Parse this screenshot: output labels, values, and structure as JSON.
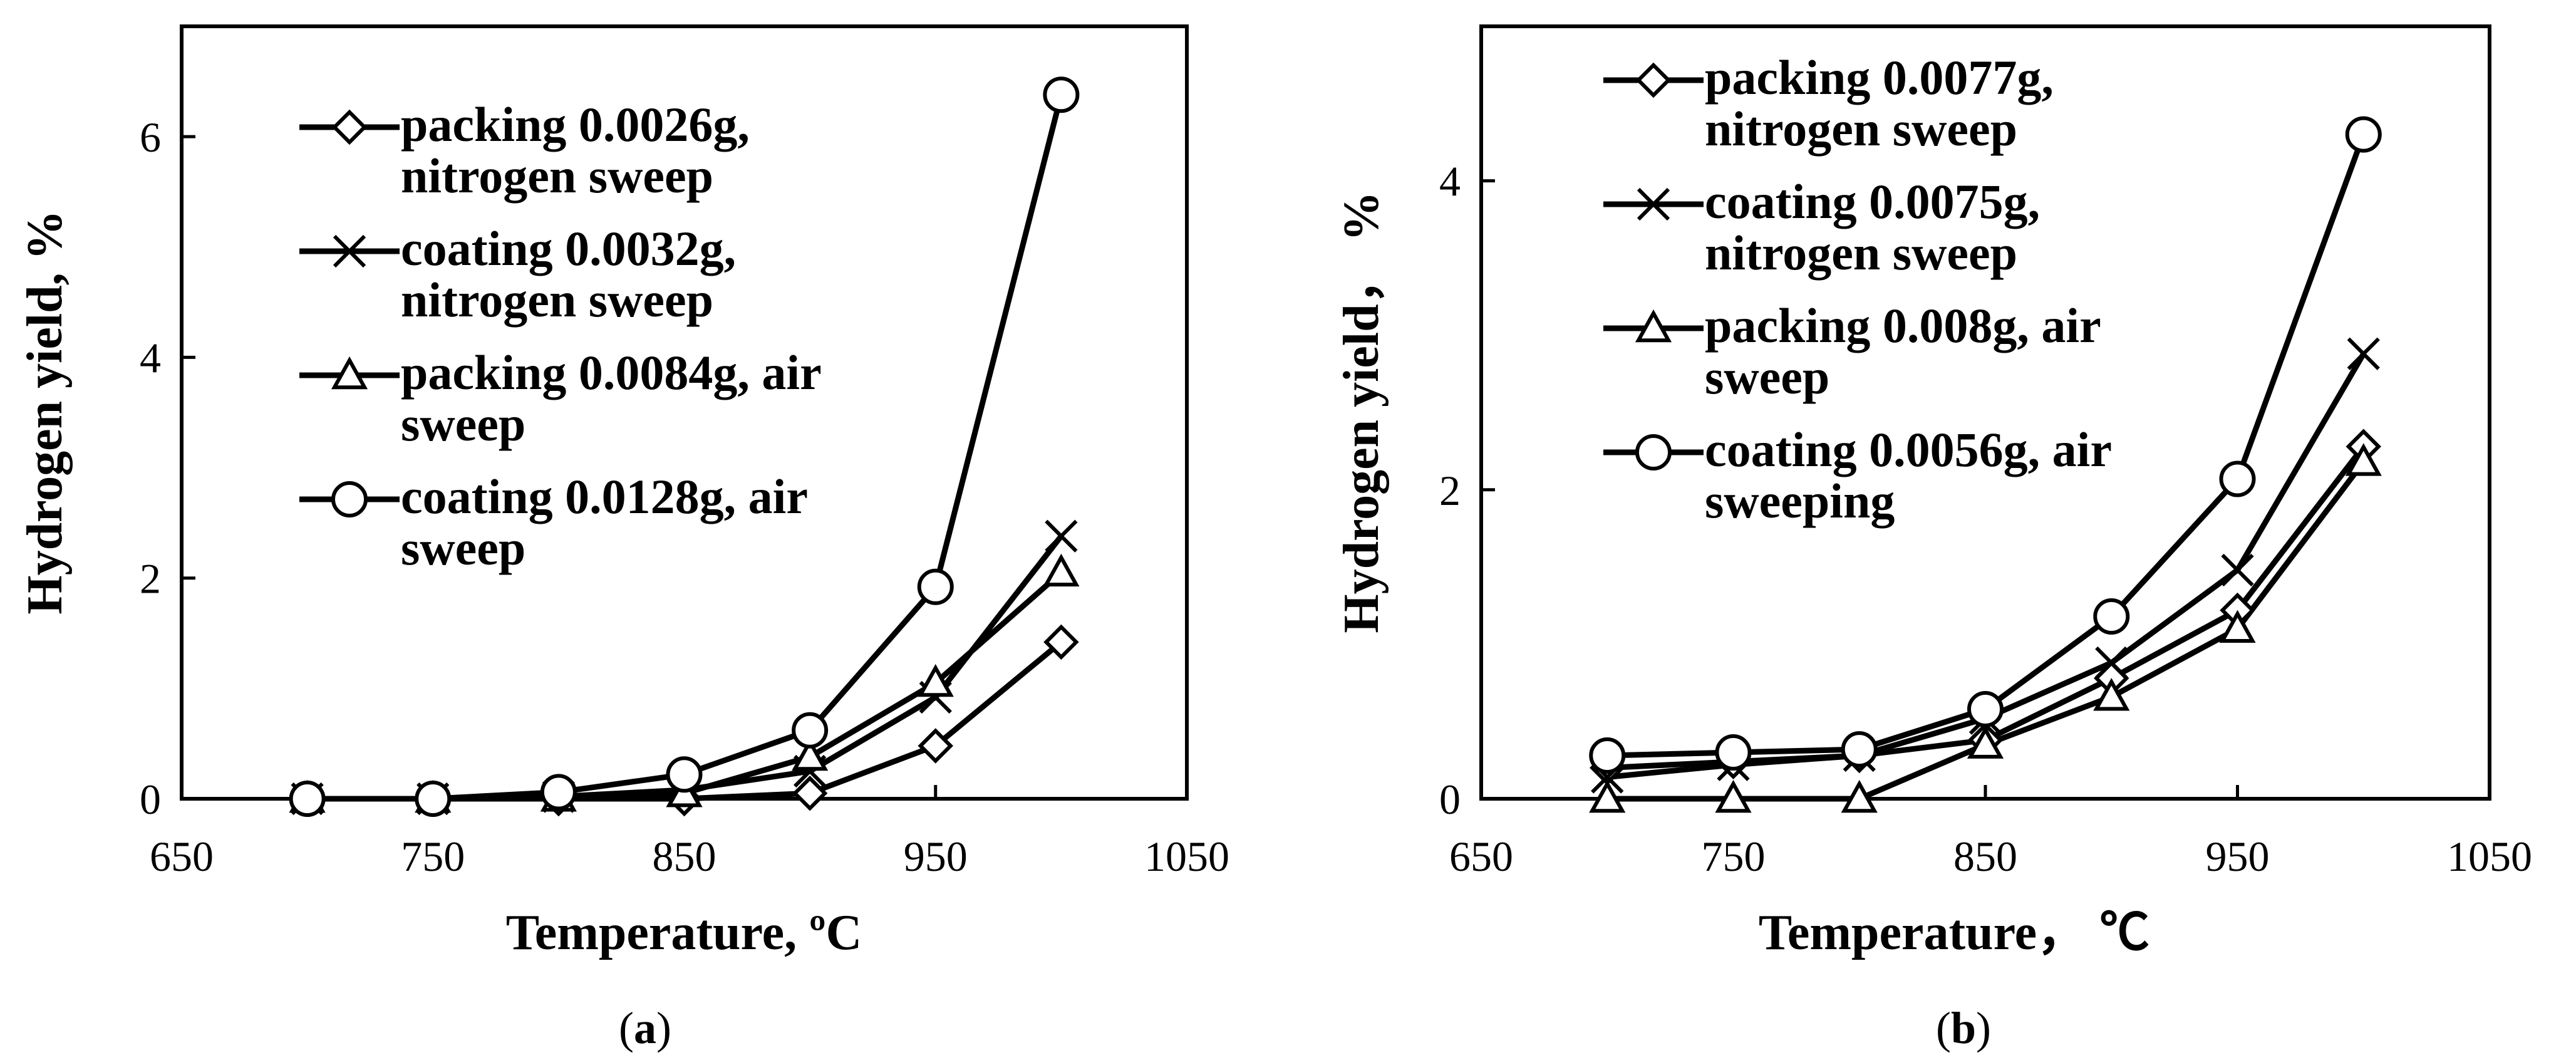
{
  "chart_data": [
    {
      "type": "line",
      "panel": "a",
      "xlabel": "Temperature, ºC",
      "ylabel": "Hydrogen yield, %",
      "xlim": [
        650,
        1050
      ],
      "ylim": [
        0,
        7
      ],
      "xticks": [
        650,
        750,
        850,
        950,
        1050
      ],
      "yticks": [
        0,
        2,
        4,
        6
      ],
      "x": [
        700,
        750,
        800,
        850,
        900,
        950,
        1000
      ],
      "series": [
        {
          "name": "packing 0.0026g, nitrogen sweep",
          "label_lines": [
            "packing 0.0026g,",
            "nitrogen sweep"
          ],
          "marker": "diamond",
          "values": [
            0,
            0,
            0,
            0,
            0.05,
            0.48,
            1.42
          ]
        },
        {
          "name": "coating 0.0032g, nitrogen sweep",
          "label_lines": [
            "coating 0.0032g,",
            "nitrogen sweep"
          ],
          "marker": "x",
          "values": [
            0,
            0,
            0.02,
            0.08,
            0.25,
            0.92,
            2.38
          ]
        },
        {
          "name": "packing 0.0084g, air sweep",
          "label_lines": [
            "packing 0.0084g, air",
            "sweep"
          ],
          "marker": "triangle",
          "values": [
            0,
            0,
            0.01,
            0.05,
            0.38,
            1.05,
            2.05
          ]
        },
        {
          "name": "coating 0.0128g, air sweep",
          "label_lines": [
            "coating 0.0128g, air",
            "sweep"
          ],
          "marker": "circle",
          "values": [
            0,
            0,
            0.06,
            0.22,
            0.62,
            1.92,
            6.38
          ]
        }
      ]
    },
    {
      "type": "line",
      "panel": "b",
      "xlabel": "Temperature， ℃",
      "ylabel": "Hydrogen yield， %",
      "xlim": [
        650,
        1050
      ],
      "ylim": [
        0,
        5
      ],
      "xticks": [
        650,
        750,
        850,
        950,
        1050
      ],
      "yticks": [
        0,
        2,
        4
      ],
      "x": [
        700,
        750,
        800,
        850,
        900,
        950,
        1000
      ],
      "series": [
        {
          "name": "packing 0.0077g, nitrogen sweep",
          "label_lines": [
            "packing 0.0077g,",
            "nitrogen sweep"
          ],
          "marker": "diamond",
          "values": [
            0.2,
            0.24,
            0.28,
            0.38,
            0.78,
            1.22,
            2.28
          ]
        },
        {
          "name": "coating 0.0075g, nitrogen sweep",
          "label_lines": [
            "coating 0.0075g,",
            "nitrogen sweep"
          ],
          "marker": "x",
          "values": [
            0.14,
            0.22,
            0.28,
            0.52,
            0.88,
            1.48,
            2.88
          ]
        },
        {
          "name": "packing 0.008g, air sweep",
          "label_lines": [
            "packing 0.008g, air",
            "sweep"
          ],
          "marker": "triangle",
          "values": [
            0,
            0,
            0,
            0.35,
            0.66,
            1.1,
            2.18
          ]
        },
        {
          "name": "coating 0.0056g, air sweeping",
          "label_lines": [
            "coating 0.0056g, air",
            "sweeping"
          ],
          "marker": "circle",
          "values": [
            0.28,
            0.3,
            0.32,
            0.58,
            1.18,
            2.07,
            4.3
          ]
        }
      ]
    }
  ],
  "captions": {
    "a": "a",
    "b": "b"
  }
}
